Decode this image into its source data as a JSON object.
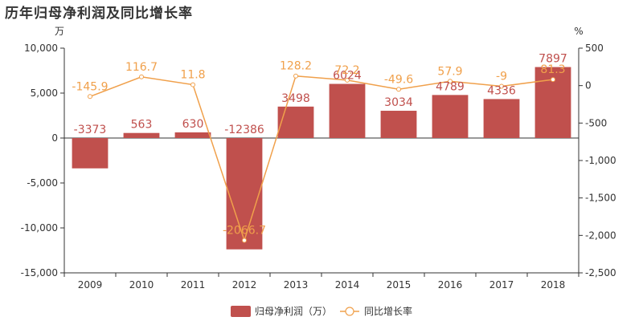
{
  "title": "历年归母净利润及同比增长率",
  "colors": {
    "bar": "#c0504d",
    "line": "#f0a04b",
    "axis": "#333333"
  },
  "chart_data": {
    "type": "bar",
    "title": "历年归母净利润及同比增长率",
    "categories": [
      "2009",
      "2010",
      "2011",
      "2012",
      "2013",
      "2014",
      "2015",
      "2016",
      "2017",
      "2018"
    ],
    "left_axis": {
      "unit": "万",
      "range": [
        -15000,
        10000
      ],
      "ticks": [
        "10,000",
        "5,000",
        "0",
        "-5,000",
        "-10,000",
        "-15,000"
      ]
    },
    "right_axis": {
      "unit": "%",
      "range": [
        -2500,
        500
      ],
      "ticks": [
        "500",
        "0",
        "-500",
        "-1,000",
        "-1,500",
        "-2,000",
        "-2,500"
      ]
    },
    "series": [
      {
        "name": "归母净利润（万）",
        "type": "bar",
        "axis": "left",
        "values": [
          -3373,
          563,
          630,
          -12386,
          3498,
          6024,
          3034,
          4789,
          4336,
          7897
        ],
        "labels": [
          "-3373",
          "563",
          "630",
          "-12386",
          "3498",
          "6024",
          "3034",
          "4789",
          "4336",
          "7897"
        ]
      },
      {
        "name": "同比增长率",
        "type": "line",
        "axis": "right",
        "values": [
          -145.9,
          116.7,
          11.8,
          -2066.7,
          128.2,
          72.2,
          -49.6,
          57.9,
          -9,
          81.3
        ],
        "labels": [
          "-145.9",
          "116.7",
          "11.8",
          "-2066.7",
          "128.2",
          "72.2",
          "-49.6",
          "57.9",
          "-9",
          "81.3"
        ]
      }
    ],
    "grid": false,
    "legend": "bottom-center"
  }
}
